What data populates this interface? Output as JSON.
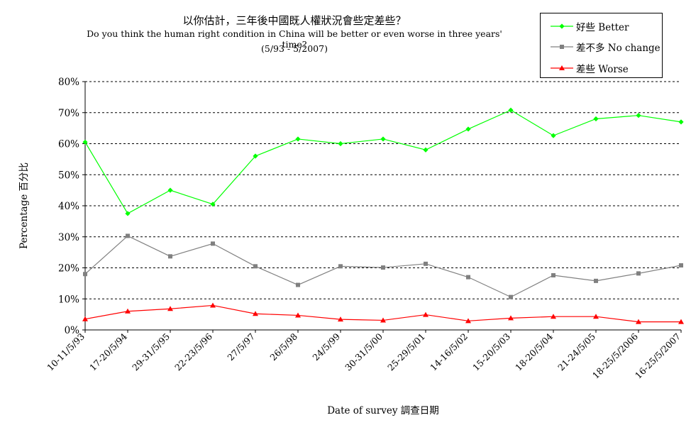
{
  "titles": {
    "line1": "以你估計，三年後中國既人權狀況會些定差些？",
    "line2": "Do you think the human right condition in China will be better or even worse in three years' time?",
    "line3": "(5/93 - 5/2007)"
  },
  "chart_data": {
    "type": "line",
    "title": "以你估計，三年後中國既人權狀況會些定差些？",
    "subtitle": "Do you think the human right condition in China will be better or even worse in three years' time?",
    "period": "(5/93 - 5/2007)",
    "xlabel": "Date of survey  調查日期",
    "ylabel": "Percentage  百分比",
    "ylim": [
      0,
      80
    ],
    "y_ticks": [
      "0%",
      "10%",
      "20%",
      "30%",
      "40%",
      "50%",
      "60%",
      "70%",
      "80%"
    ],
    "grid": true,
    "legend_position": "top-right",
    "categories": [
      "10-11/5/93",
      "17-20/5/94",
      "29-31/5/95",
      "22-23/5/96",
      "27/5/97",
      "26/5/98",
      "24/5/99",
      "30-31/5/00",
      "25-29/5/01",
      "14-16/5/02",
      "15-20/5/03",
      "18-20/5/04",
      "21-24/5/05",
      "18-25/5/2006",
      "16-25/5/2007"
    ],
    "series": [
      {
        "name": "好些 Better",
        "color": "#00ff00",
        "marker": "diamond",
        "values": [
          60.5,
          37.5,
          45,
          40.5,
          56,
          61.5,
          60,
          61.5,
          58,
          64.7,
          70.8,
          62.6,
          68,
          69.1,
          67
        ]
      },
      {
        "name": "差不多 No change",
        "color": "#808080",
        "marker": "square",
        "values": [
          18,
          30.3,
          23.7,
          27.8,
          20.5,
          14.5,
          20.5,
          20.1,
          21.3,
          17,
          10.6,
          17.6,
          15.8,
          18.2,
          20.8
        ]
      },
      {
        "name": "差些 Worse",
        "color": "#ff0000",
        "marker": "triangle",
        "values": [
          3.5,
          6,
          6.8,
          7.9,
          5.2,
          4.7,
          3.4,
          3.1,
          4.9,
          2.9,
          3.8,
          4.3,
          4.3,
          2.6,
          2.6
        ]
      }
    ]
  }
}
